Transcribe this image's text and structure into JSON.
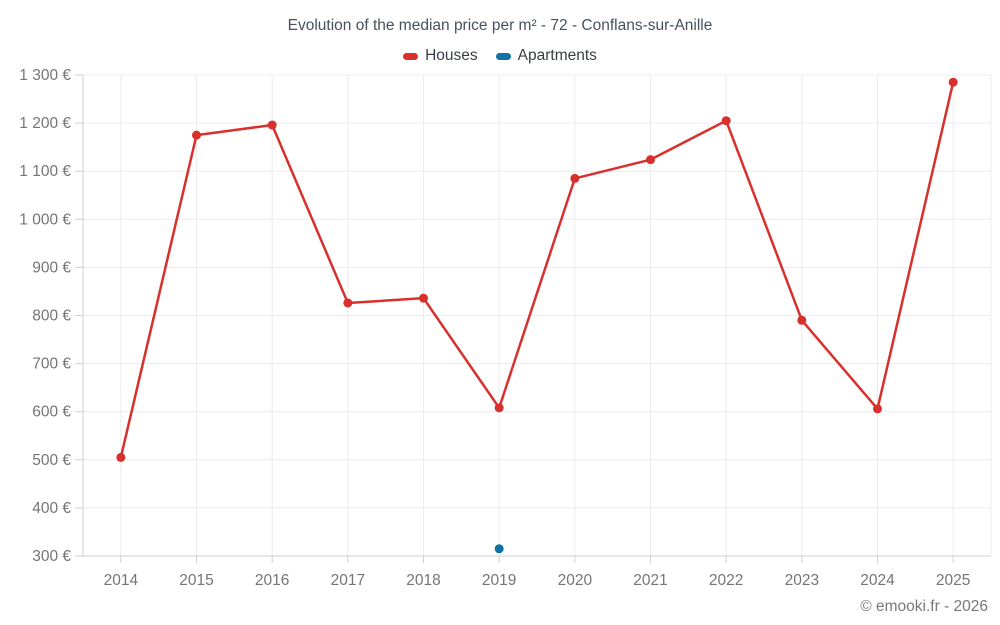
{
  "title": "Evolution of the median price per m² - 72 - Conflans-sur-Anille",
  "footer": "© emooki.fr - 2026",
  "chart_data": {
    "type": "line",
    "title": "Evolution of the median price per m² - 72 - Conflans-sur-Anille",
    "categories": [
      "2014",
      "2015",
      "2016",
      "2017",
      "2018",
      "2019",
      "2020",
      "2021",
      "2022",
      "2023",
      "2024",
      "2025"
    ],
    "series": [
      {
        "name": "Houses",
        "color": "#d8302c",
        "values": [
          505,
          1175,
          1196,
          826,
          836,
          608,
          1085,
          1124,
          1205,
          790,
          606,
          1285
        ]
      },
      {
        "name": "Apartments",
        "color": "#0e72a3",
        "values": [
          null,
          null,
          null,
          null,
          null,
          315,
          null,
          null,
          null,
          null,
          null,
          null
        ]
      }
    ],
    "ylim": [
      300,
      1300
    ],
    "y_tick_step": 100,
    "y_tick_labels": [
      "300 €",
      "400 €",
      "500 €",
      "600 €",
      "700 €",
      "800 €",
      "900 €",
      "1 000 €",
      "1 100 €",
      "1 200 €",
      "1 300 €"
    ],
    "xlabel": "",
    "ylabel": "",
    "grid": true,
    "legend_position": "top",
    "colors": {
      "grid_line": "#ececec",
      "axis_line": "#cfcfcf",
      "tick_text": "#757575"
    }
  }
}
